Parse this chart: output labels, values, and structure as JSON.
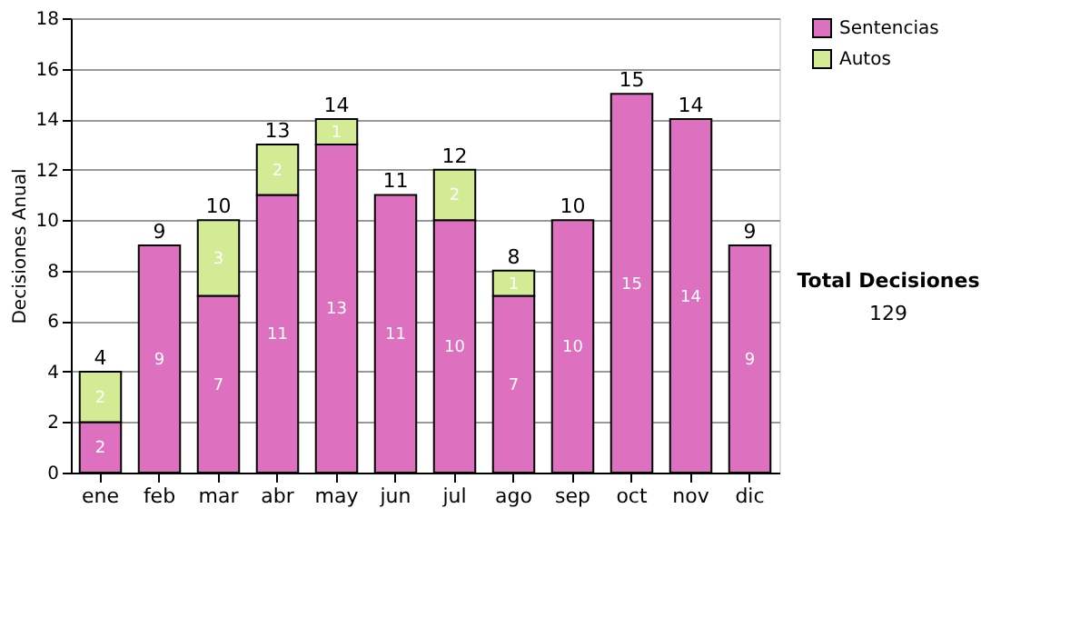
{
  "chart_data": {
    "type": "bar",
    "stacked": true,
    "ylabel": "Decisiones Anual",
    "categories": [
      "ene",
      "feb",
      "mar",
      "abr",
      "may",
      "jun",
      "jul",
      "ago",
      "sep",
      "oct",
      "nov",
      "dic"
    ],
    "series": [
      {
        "name": "Sentencias",
        "color": "#de70c0",
        "values": [
          2,
          9,
          7,
          11,
          13,
          11,
          10,
          7,
          10,
          15,
          14,
          9
        ]
      },
      {
        "name": "Autos",
        "color": "#d4eb96",
        "values": [
          2,
          null,
          3,
          2,
          1,
          null,
          2,
          1,
          null,
          null,
          null,
          null
        ]
      }
    ],
    "totals": [
      "4",
      "9",
      "10",
      "13",
      "14",
      "11",
      "12",
      "8",
      "10",
      "15",
      "14",
      "9"
    ],
    "data_labels": true,
    "ylim": [
      0,
      18
    ],
    "yticks": [
      0,
      2,
      4,
      6,
      8,
      10,
      12,
      14,
      16,
      18
    ],
    "grid": "y",
    "legend": "right",
    "annotations": [
      "Total Decisiones",
      "129"
    ]
  }
}
